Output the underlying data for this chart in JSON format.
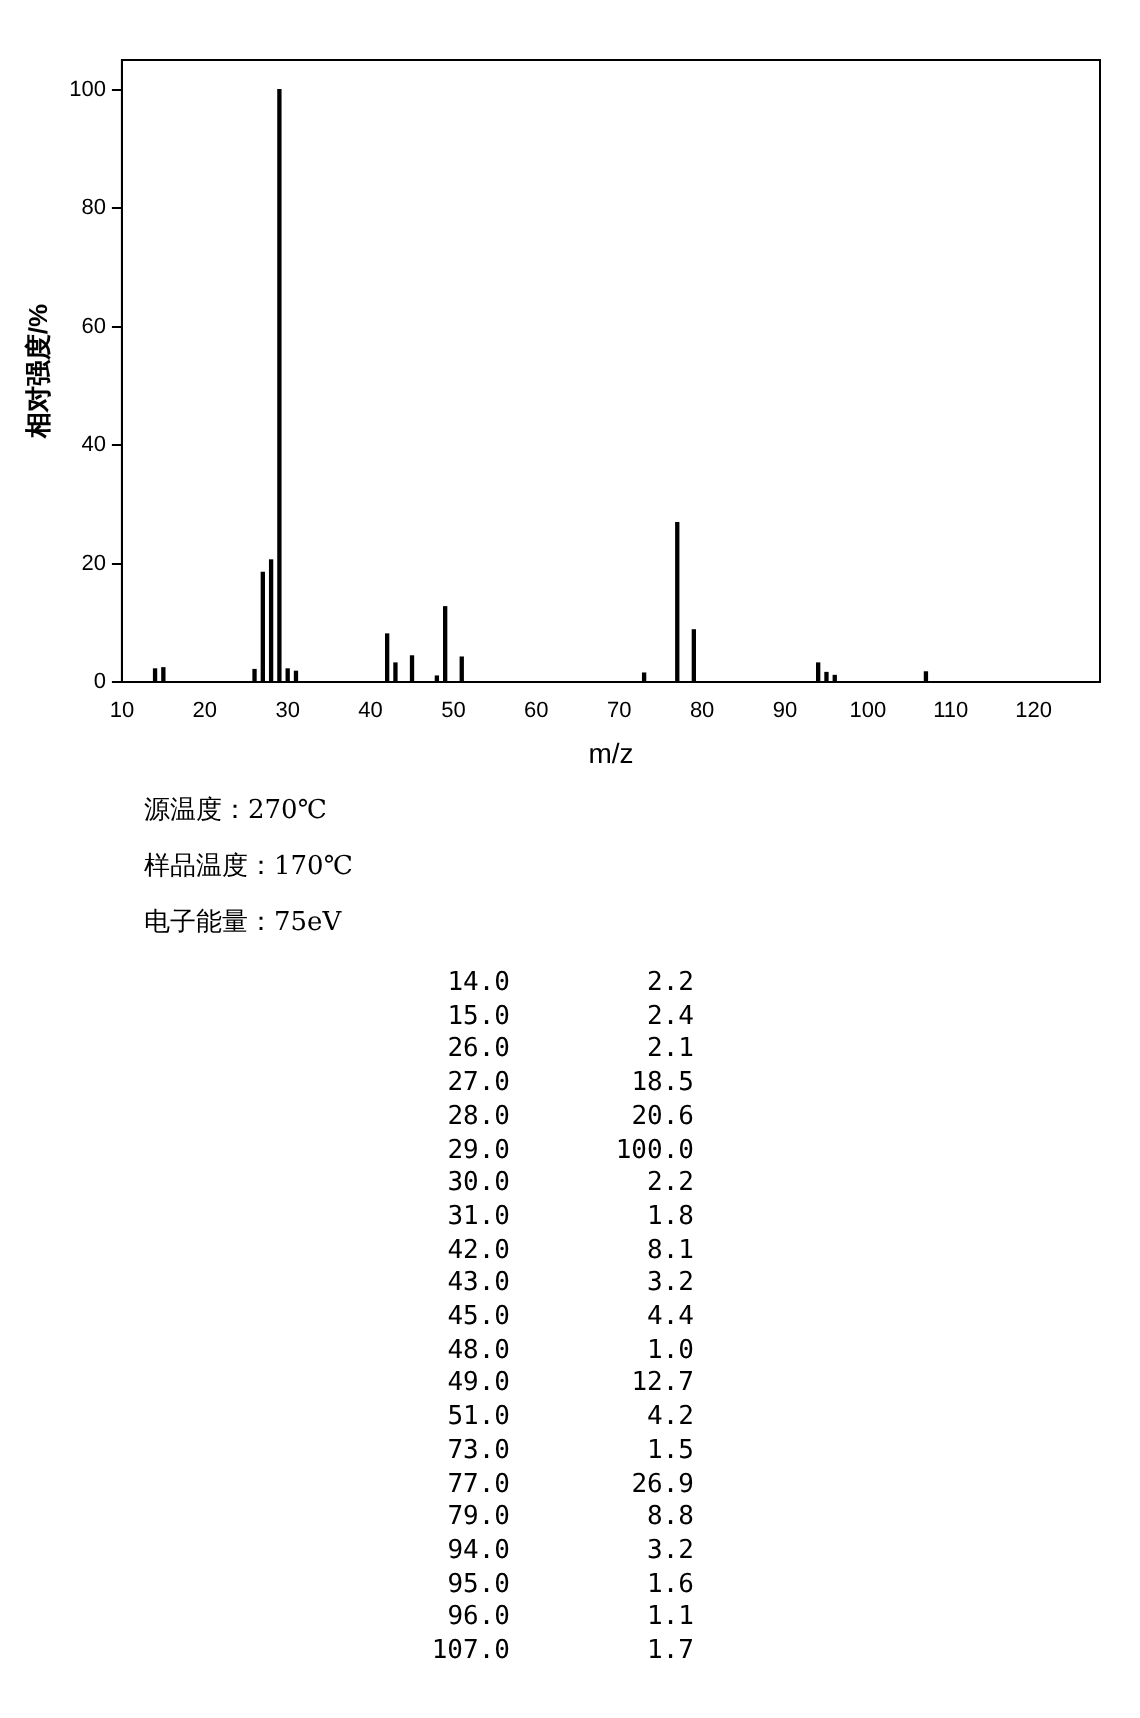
{
  "chart_data": {
    "type": "bar",
    "xlabel": "m/z",
    "ylabel": "相对强度/%",
    "x": [
      14,
      15,
      26,
      27,
      28,
      29,
      30,
      31,
      42,
      43,
      45,
      48,
      49,
      51,
      73,
      77,
      79,
      94,
      95,
      96,
      107
    ],
    "values": [
      2.2,
      2.4,
      2.1,
      18.5,
      20.6,
      100,
      2.2,
      1.8,
      8.1,
      3.2,
      4.4,
      1.0,
      12.7,
      4.2,
      1.5,
      26.9,
      8.8,
      3.2,
      1.6,
      1.1,
      1.7
    ],
    "color": "#000000",
    "xlim": [
      10,
      128
    ],
    "xticks": [
      10,
      20,
      30,
      40,
      50,
      60,
      70,
      80,
      90,
      100,
      110,
      120
    ],
    "ylim": [
      0,
      105
    ],
    "yticks": [
      0,
      20,
      40,
      60,
      80,
      100
    ],
    "grid": false,
    "legend": false,
    "annotations": [
      "源温度：270℃",
      "样品温度：170℃",
      "电子能量：75eV",
      "14.0",
      "2.2",
      "15.0",
      "2.4",
      "26.0",
      "2.1",
      "27.0",
      "18.5",
      "28.0",
      "20.6",
      "29.0",
      "100.0",
      "30.0",
      "2.2",
      "31.0",
      "1.8",
      "42.0",
      "8.1",
      "43.0",
      "3.2",
      "45.0",
      "4.4",
      "48.0",
      "1.0",
      "49.0",
      "12.7",
      "51.0",
      "4.2",
      "73.0",
      "1.5",
      "77.0",
      "26.9",
      "79.0",
      "8.8",
      "94.0",
      "3.2",
      "95.0",
      "1.6",
      "96.0",
      "1.1",
      "107.0",
      "1.7"
    ]
  }
}
